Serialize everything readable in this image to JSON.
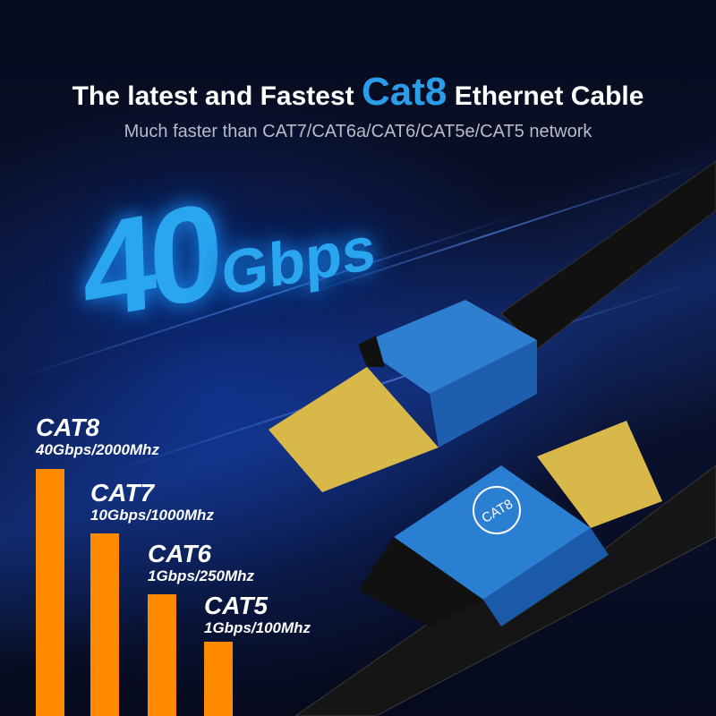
{
  "title": {
    "before": "The latest and Fastest ",
    "highlight": "Cat8",
    "after": " Ethernet Cable"
  },
  "subtitle": "Much faster than CAT7/CAT6a/CAT6/CAT5e/CAT5 network",
  "speed": {
    "number": "40",
    "unit": "Gbps"
  },
  "connector_badge": "CAT8",
  "categories": [
    {
      "name": "CAT8",
      "spec": "40Gbps/2000Mhz"
    },
    {
      "name": "CAT7",
      "spec": "10Gbps/1000Mhz"
    },
    {
      "name": "CAT6",
      "spec": "1Gbps/250Mhz"
    },
    {
      "name": "CAT5",
      "spec": "1Gbps/100Mhz"
    }
  ],
  "colors": {
    "accent": "#2a9de8",
    "bar": "#ff8a00",
    "background": "#05081a"
  }
}
